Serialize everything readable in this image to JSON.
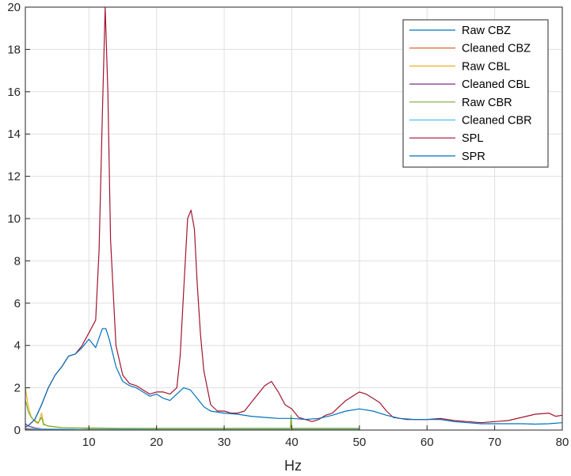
{
  "chart_data": {
    "type": "line",
    "title": "",
    "xlabel": "Hz",
    "ylabel": "",
    "xlim": [
      0.6,
      80
    ],
    "ylim": [
      0,
      20
    ],
    "xticks": [
      10,
      20,
      30,
      40,
      50,
      60,
      70,
      80
    ],
    "yticks": [
      0,
      2,
      4,
      6,
      8,
      10,
      12,
      14,
      16,
      18,
      20
    ],
    "grid": true,
    "legend_position": "top-right",
    "series": [
      {
        "name": "Raw CBZ",
        "color": "#0072BD",
        "points": [
          [
            0.6,
            0.05
          ],
          [
            2,
            0.05
          ],
          [
            5,
            0.04
          ],
          [
            10,
            0.03
          ],
          [
            20,
            0.02
          ],
          [
            30,
            0.02
          ],
          [
            40,
            0.02
          ],
          [
            50,
            0.02
          ]
        ]
      },
      {
        "name": "Cleaned CBZ",
        "color": "#D95319",
        "points": [
          [
            0.6,
            0.05
          ],
          [
            2,
            0.05
          ],
          [
            5,
            0.04
          ],
          [
            10,
            0.03
          ],
          [
            20,
            0.02
          ],
          [
            30,
            0.02
          ],
          [
            40,
            0.02
          ],
          [
            50,
            0.02
          ]
        ]
      },
      {
        "name": "Raw CBL",
        "color": "#EDB120",
        "points": [
          [
            0.6,
            2.0
          ],
          [
            0.8,
            1.6
          ],
          [
            1.0,
            1.2
          ],
          [
            1.2,
            0.9
          ],
          [
            1.5,
            0.6
          ],
          [
            2.0,
            0.4
          ],
          [
            2.5,
            0.3
          ],
          [
            3.0,
            0.8
          ],
          [
            3.3,
            0.3
          ],
          [
            4,
            0.18
          ],
          [
            5,
            0.15
          ],
          [
            6,
            0.12
          ],
          [
            8,
            0.1
          ],
          [
            10,
            0.08
          ],
          [
            15,
            0.07
          ],
          [
            20,
            0.06
          ],
          [
            25,
            0.06
          ],
          [
            30,
            0.06
          ],
          [
            35,
            0.06
          ],
          [
            39.8,
            0.06
          ],
          [
            39.9,
            0.5
          ],
          [
            40,
            0.06
          ],
          [
            45,
            0.06
          ],
          [
            50,
            0.06
          ]
        ]
      },
      {
        "name": "Cleaned CBL",
        "color": "#7E2F8E",
        "points": [
          [
            0.6,
            0.3
          ],
          [
            1,
            0.2
          ],
          [
            2,
            0.1
          ],
          [
            3,
            0.06
          ],
          [
            5,
            0.04
          ],
          [
            10,
            0.03
          ],
          [
            20,
            0.02
          ],
          [
            30,
            0.02
          ],
          [
            40,
            0.02
          ],
          [
            50,
            0.02
          ]
        ]
      },
      {
        "name": "Raw CBR",
        "color": "#77AC30",
        "points": [
          [
            0.6,
            1.4
          ],
          [
            0.8,
            1.2
          ],
          [
            1.0,
            0.9
          ],
          [
            1.3,
            0.7
          ],
          [
            1.6,
            0.55
          ],
          [
            2.0,
            0.45
          ],
          [
            2.5,
            0.35
          ],
          [
            3.0,
            0.6
          ],
          [
            3.3,
            0.25
          ],
          [
            4,
            0.2
          ],
          [
            5,
            0.15
          ],
          [
            6,
            0.12
          ],
          [
            8,
            0.1
          ],
          [
            10,
            0.1
          ],
          [
            15,
            0.08
          ],
          [
            20,
            0.08
          ],
          [
            25,
            0.08
          ],
          [
            30,
            0.08
          ],
          [
            35,
            0.08
          ],
          [
            39.8,
            0.08
          ],
          [
            39.9,
            0.7
          ],
          [
            40,
            0.08
          ],
          [
            45,
            0.08
          ],
          [
            50,
            0.08
          ]
        ]
      },
      {
        "name": "Cleaned CBR",
        "color": "#4DBEEE",
        "points": [
          [
            0.6,
            0.1
          ],
          [
            1,
            0.08
          ],
          [
            2,
            0.06
          ],
          [
            5,
            0.04
          ],
          [
            10,
            0.03
          ],
          [
            20,
            0.02
          ],
          [
            30,
            0.02
          ],
          [
            40,
            0.02
          ],
          [
            50,
            0.02
          ]
        ]
      },
      {
        "name": "SPL",
        "color": "#A2142F",
        "points": [
          [
            0.6,
            0.15
          ],
          [
            1,
            0.2
          ],
          [
            2,
            0.5
          ],
          [
            3,
            1.2
          ],
          [
            4,
            2.0
          ],
          [
            5,
            2.6
          ],
          [
            6,
            3.0
          ],
          [
            7,
            3.5
          ],
          [
            8,
            3.6
          ],
          [
            9,
            4.0
          ],
          [
            10,
            4.6
          ],
          [
            11,
            5.2
          ],
          [
            11.5,
            8.5
          ],
          [
            12,
            15.0
          ],
          [
            12.4,
            20.0
          ],
          [
            12.8,
            16.0
          ],
          [
            13.2,
            9.0
          ],
          [
            14,
            4.0
          ],
          [
            15,
            2.6
          ],
          [
            16,
            2.2
          ],
          [
            17,
            2.1
          ],
          [
            18,
            1.9
          ],
          [
            19,
            1.7
          ],
          [
            20,
            1.8
          ],
          [
            21,
            1.8
          ],
          [
            22,
            1.7
          ],
          [
            23,
            2.0
          ],
          [
            23.5,
            3.5
          ],
          [
            24,
            6.5
          ],
          [
            24.6,
            10.0
          ],
          [
            25.1,
            10.4
          ],
          [
            25.6,
            9.5
          ],
          [
            26,
            7.0
          ],
          [
            26.5,
            4.5
          ],
          [
            27,
            2.8
          ],
          [
            28,
            1.2
          ],
          [
            29,
            0.9
          ],
          [
            30,
            0.9
          ],
          [
            31,
            0.8
          ],
          [
            32,
            0.8
          ],
          [
            33,
            0.9
          ],
          [
            34,
            1.3
          ],
          [
            35,
            1.7
          ],
          [
            36,
            2.1
          ],
          [
            37,
            2.3
          ],
          [
            38,
            1.8
          ],
          [
            39,
            1.2
          ],
          [
            40,
            1.0
          ],
          [
            41,
            0.6
          ],
          [
            42,
            0.5
          ],
          [
            43,
            0.4
          ],
          [
            44,
            0.5
          ],
          [
            45,
            0.7
          ],
          [
            46,
            0.8
          ],
          [
            47,
            1.1
          ],
          [
            48,
            1.4
          ],
          [
            49,
            1.6
          ],
          [
            50,
            1.8
          ],
          [
            51,
            1.7
          ],
          [
            52,
            1.5
          ],
          [
            53,
            1.3
          ],
          [
            54,
            0.9
          ],
          [
            55,
            0.6
          ],
          [
            57,
            0.5
          ],
          [
            60,
            0.5
          ],
          [
            62,
            0.55
          ],
          [
            64,
            0.45
          ],
          [
            66,
            0.4
          ],
          [
            68,
            0.35
          ],
          [
            70,
            0.4
          ],
          [
            72,
            0.45
          ],
          [
            74,
            0.6
          ],
          [
            76,
            0.75
          ],
          [
            78,
            0.8
          ],
          [
            79,
            0.65
          ],
          [
            80,
            0.7
          ]
        ]
      },
      {
        "name": "SPR",
        "color": "#0072BD",
        "points": [
          [
            0.6,
            0.15
          ],
          [
            1,
            0.2
          ],
          [
            2,
            0.5
          ],
          [
            3,
            1.2
          ],
          [
            4,
            2.0
          ],
          [
            5,
            2.6
          ],
          [
            6,
            3.0
          ],
          [
            7,
            3.5
          ],
          [
            8,
            3.6
          ],
          [
            9,
            3.9
          ],
          [
            10,
            4.3
          ],
          [
            11,
            3.9
          ],
          [
            12,
            4.8
          ],
          [
            12.5,
            4.8
          ],
          [
            13,
            4.3
          ],
          [
            14,
            3.0
          ],
          [
            15,
            2.3
          ],
          [
            16,
            2.1
          ],
          [
            17,
            2.0
          ],
          [
            18,
            1.8
          ],
          [
            19,
            1.6
          ],
          [
            20,
            1.7
          ],
          [
            21,
            1.5
          ],
          [
            22,
            1.4
          ],
          [
            23,
            1.7
          ],
          [
            24,
            2.0
          ],
          [
            25,
            1.9
          ],
          [
            26,
            1.5
          ],
          [
            27,
            1.1
          ],
          [
            28,
            0.9
          ],
          [
            30,
            0.8
          ],
          [
            32,
            0.75
          ],
          [
            34,
            0.65
          ],
          [
            36,
            0.6
          ],
          [
            38,
            0.55
          ],
          [
            40,
            0.55
          ],
          [
            42,
            0.5
          ],
          [
            44,
            0.55
          ],
          [
            46,
            0.7
          ],
          [
            48,
            0.9
          ],
          [
            50,
            1.0
          ],
          [
            52,
            0.9
          ],
          [
            54,
            0.7
          ],
          [
            56,
            0.55
          ],
          [
            58,
            0.5
          ],
          [
            60,
            0.5
          ],
          [
            62,
            0.5
          ],
          [
            64,
            0.4
          ],
          [
            66,
            0.35
          ],
          [
            68,
            0.3
          ],
          [
            70,
            0.3
          ],
          [
            72,
            0.3
          ],
          [
            74,
            0.3
          ],
          [
            76,
            0.28
          ],
          [
            78,
            0.3
          ],
          [
            80,
            0.35
          ]
        ]
      }
    ]
  }
}
